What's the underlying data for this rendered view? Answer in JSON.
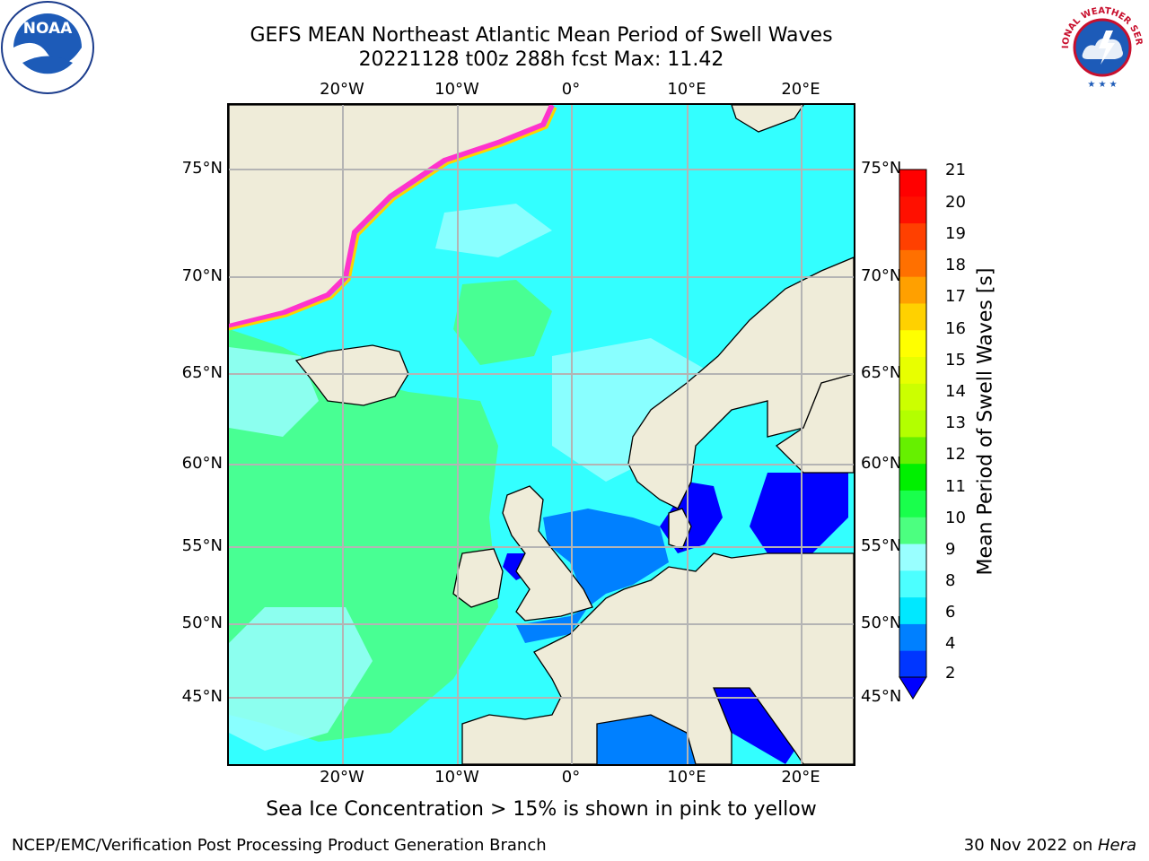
{
  "title": {
    "line1": "GEFS MEAN Northeast Atlantic Mean Period of Swell Waves",
    "line2": "20221128 t00z 288h fcst   Max: 11.42"
  },
  "axes": {
    "lon_top": [
      "20°W",
      "10°W",
      "0°",
      "10°E",
      "20°E"
    ],
    "lon_bottom": [
      "20°W",
      "10°W",
      "0°",
      "10°E",
      "20°E"
    ],
    "lat_left": [
      "75°N",
      "70°N",
      "65°N",
      "60°N",
      "55°N",
      "50°N",
      "45°N"
    ],
    "lat_right": [
      "75°N",
      "70°N",
      "65°N",
      "60°N",
      "55°N",
      "50°N",
      "45°N"
    ]
  },
  "colorbar": {
    "label": "Mean Period of Swell Waves [s]",
    "ticks": [
      "2",
      "4",
      "6",
      "8",
      "9",
      "10",
      "11",
      "12",
      "13",
      "14",
      "15",
      "16",
      "17",
      "18",
      "19",
      "20",
      "21"
    ],
    "colors": [
      "#0036ff",
      "#0080ff",
      "#00e8ff",
      "#4cffff",
      "#99ffff",
      "#4cff80",
      "#19ff4c",
      "#00f000",
      "#66f000",
      "#b3ff00",
      "#ccff00",
      "#e8ff00",
      "#ffff00",
      "#ffd100",
      "#ffa000",
      "#ff7000",
      "#ff4000",
      "#ff1000",
      "#ff0000"
    ],
    "under_color": "#0000ff"
  },
  "caption": "Sea Ice Concentration > 15% is shown in pink to yellow",
  "footer": {
    "credit": "NCEP/EMC/Verification Post Processing Product Generation Branch",
    "date": "30 Nov 2022 on ",
    "host": "Hera"
  },
  "colors": {
    "land": "#efecd9",
    "ocean_main": "#33ffff",
    "ocean_swell_high": "#4cff80",
    "ocean_swell_mid": "#99ffff",
    "ocean_low": "#0080ff",
    "ocean_lowest": "#0000ff",
    "sea_ice_edge": "#ff33cc",
    "grid": "#b4b4b4"
  },
  "logos": {
    "noaa": "NOAA",
    "nws_text": "NATIONAL WEATHER SERVICE"
  }
}
